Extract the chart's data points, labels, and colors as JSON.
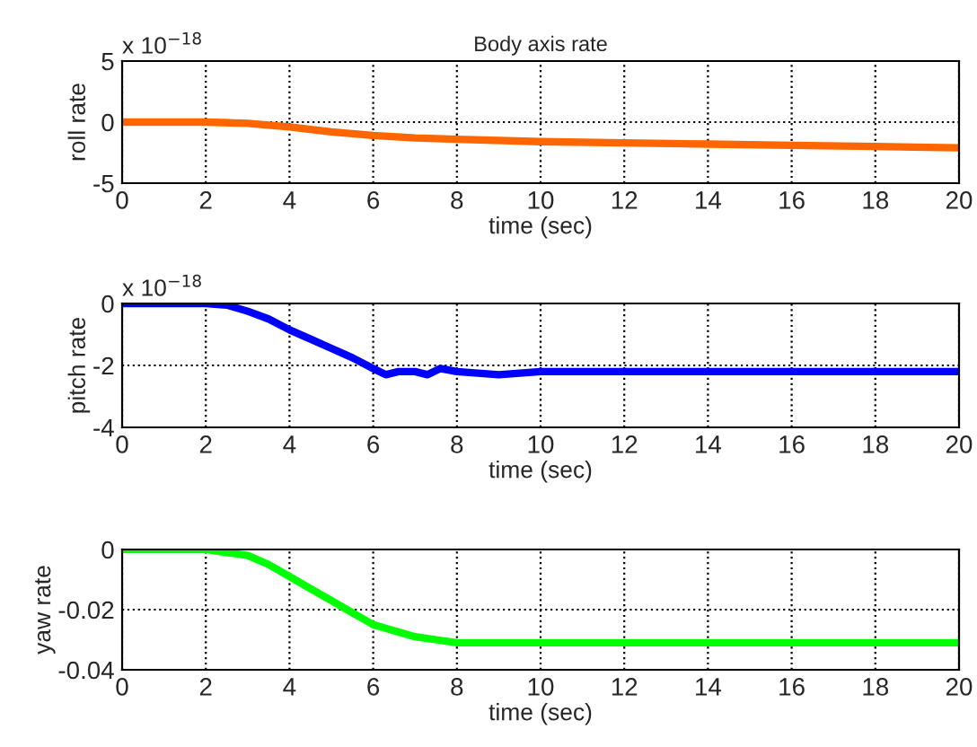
{
  "chart_data": [
    {
      "type": "line",
      "title": "Body axis rate",
      "xlabel": "time (sec)",
      "ylabel": "roll rate",
      "annotations": [
        "x 10$^{−18}$"
      ],
      "xlim": [
        0,
        20
      ],
      "xticks": [
        0,
        2,
        4,
        6,
        8,
        10,
        12,
        14,
        16,
        18,
        20
      ],
      "ylim": [
        -5,
        5
      ],
      "yticks": [
        -5,
        0,
        5
      ],
      "grid": true,
      "line_style": "solid",
      "series": [
        {
          "color": "#ff6600",
          "x": [
            0,
            2,
            3,
            4,
            5,
            6,
            7,
            8,
            10,
            12,
            14,
            16,
            18,
            20
          ],
          "values": [
            0,
            0,
            -0.1,
            -0.4,
            -0.8,
            -1.1,
            -1.3,
            -1.4,
            -1.6,
            -1.7,
            -1.8,
            -1.9,
            -2.0,
            -2.1
          ]
        }
      ]
    },
    {
      "type": "line",
      "xlabel": "time (sec)",
      "ylabel": "pitch rate",
      "annotations": [
        "x 10$^{−18}$"
      ],
      "xlim": [
        0,
        20
      ],
      "xticks": [
        0,
        2,
        4,
        6,
        8,
        10,
        12,
        14,
        16,
        18,
        20
      ],
      "ylim": [
        -4,
        0
      ],
      "yticks": [
        -4,
        -2,
        0
      ],
      "grid": true,
      "line_style": "solid",
      "series": [
        {
          "color": "#0000ff",
          "x": [
            0,
            2,
            2.5,
            3,
            3.5,
            4,
            4.5,
            5,
            5.5,
            6,
            6.3,
            6.6,
            7,
            7.3,
            7.6,
            8,
            9,
            10,
            12,
            14,
            16,
            18,
            20
          ],
          "values": [
            0,
            0,
            -0.05,
            -0.25,
            -0.5,
            -0.85,
            -1.15,
            -1.45,
            -1.75,
            -2.1,
            -2.3,
            -2.2,
            -2.2,
            -2.3,
            -2.1,
            -2.2,
            -2.3,
            -2.2,
            -2.2,
            -2.2,
            -2.2,
            -2.2,
            -2.2
          ]
        }
      ]
    },
    {
      "type": "line",
      "xlabel": "time (sec)",
      "ylabel": "yaw rate",
      "xlim": [
        0,
        20
      ],
      "xticks": [
        0,
        2,
        4,
        6,
        8,
        10,
        12,
        14,
        16,
        18,
        20
      ],
      "ylim": [
        -0.04,
        0
      ],
      "yticks": [
        -0.04,
        -0.02,
        0
      ],
      "grid": true,
      "line_style": "solid",
      "series": [
        {
          "color": "#00ff00",
          "x": [
            0,
            2,
            2.5,
            3,
            3.5,
            4,
            4.5,
            5,
            5.5,
            6,
            6.5,
            7,
            7.5,
            8,
            9,
            10,
            12,
            14,
            16,
            18,
            20
          ],
          "values": [
            0,
            0,
            -0.001,
            -0.002,
            -0.005,
            -0.009,
            -0.013,
            -0.017,
            -0.021,
            -0.025,
            -0.027,
            -0.029,
            -0.03,
            -0.031,
            -0.031,
            -0.031,
            -0.031,
            -0.031,
            -0.031,
            -0.031,
            -0.031
          ]
        }
      ]
    }
  ]
}
